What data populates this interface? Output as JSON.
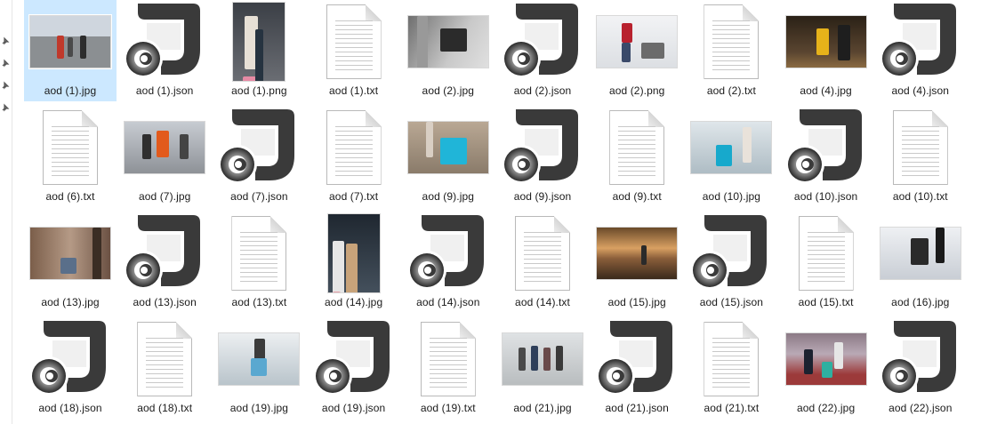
{
  "rail": {
    "pins": [
      {
        "icon": "pin-icon"
      },
      {
        "icon": "pin-icon"
      },
      {
        "icon": "pin-icon"
      },
      {
        "icon": "pin-icon"
      }
    ]
  },
  "files": [
    {
      "name": "aod (1).jpg",
      "kind": "photo",
      "orient": "landscape",
      "scene": "platform",
      "selected": true
    },
    {
      "name": "aod (1).json",
      "kind": "json"
    },
    {
      "name": "aod (1).png",
      "kind": "photo",
      "orient": "portrait",
      "scene": "pink-luggage"
    },
    {
      "name": "aod (1).txt",
      "kind": "txt"
    },
    {
      "name": "aod (2).jpg",
      "kind": "photo",
      "orient": "landscape",
      "scene": "escalator"
    },
    {
      "name": "aod (2).json",
      "kind": "json"
    },
    {
      "name": "aod (2).png",
      "kind": "photo",
      "orient": "landscape",
      "scene": "snow"
    },
    {
      "name": "aod (2).txt",
      "kind": "txt"
    },
    {
      "name": "aod (4).jpg",
      "kind": "photo",
      "orient": "landscape",
      "scene": "yellow-case"
    },
    {
      "name": "aod (4).json",
      "kind": "json"
    },
    {
      "name": "aod (6).txt",
      "kind": "txt"
    },
    {
      "name": "aod (7).jpg",
      "kind": "photo",
      "orient": "landscape",
      "scene": "station-crowd"
    },
    {
      "name": "aod (7).json",
      "kind": "json"
    },
    {
      "name": "aod (7).txt",
      "kind": "txt"
    },
    {
      "name": "aod (9).jpg",
      "kind": "photo",
      "orient": "landscape",
      "scene": "cyan-case"
    },
    {
      "name": "aod (9).json",
      "kind": "json"
    },
    {
      "name": "aod (9).txt",
      "kind": "txt"
    },
    {
      "name": "aod (10).jpg",
      "kind": "photo",
      "orient": "landscape",
      "scene": "cyan-walk"
    },
    {
      "name": "aod (10).json",
      "kind": "json"
    },
    {
      "name": "aod (10).txt",
      "kind": "txt"
    },
    {
      "name": "aod (13).jpg",
      "kind": "photo",
      "orient": "landscape",
      "scene": "stairs"
    },
    {
      "name": "aod (13).json",
      "kind": "json"
    },
    {
      "name": "aod (13).txt",
      "kind": "txt"
    },
    {
      "name": "aod (14).jpg",
      "kind": "photo",
      "orient": "portrait",
      "scene": "couple"
    },
    {
      "name": "aod (14).json",
      "kind": "json"
    },
    {
      "name": "aod (14).txt",
      "kind": "txt"
    },
    {
      "name": "aod (15).jpg",
      "kind": "photo",
      "orient": "landscape",
      "scene": "sunset-terminal"
    },
    {
      "name": "aod (15).json",
      "kind": "json"
    },
    {
      "name": "aod (15).txt",
      "kind": "txt"
    },
    {
      "name": "aod (16).jpg",
      "kind": "photo",
      "orient": "landscape",
      "scene": "dark-case"
    },
    {
      "name": "aod (18).json",
      "kind": "json"
    },
    {
      "name": "aod (18).txt",
      "kind": "txt"
    },
    {
      "name": "aod (19).jpg",
      "kind": "photo",
      "orient": "landscape",
      "scene": "escalator-blue"
    },
    {
      "name": "aod (19).json",
      "kind": "json"
    },
    {
      "name": "aod (19).txt",
      "kind": "txt"
    },
    {
      "name": "aod (21).jpg",
      "kind": "photo",
      "orient": "landscape",
      "scene": "group-walk"
    },
    {
      "name": "aod (21).json",
      "kind": "json"
    },
    {
      "name": "aod (21).txt",
      "kind": "txt"
    },
    {
      "name": "aod (22).jpg",
      "kind": "photo",
      "orient": "landscape",
      "scene": "hall-green"
    },
    {
      "name": "aod (22).json",
      "kind": "json"
    }
  ],
  "colors": {
    "selection": "#cce8ff",
    "label": "#1a1a1a",
    "json_dark": "#3a3a3a",
    "json_light": "#f0f0f0"
  }
}
